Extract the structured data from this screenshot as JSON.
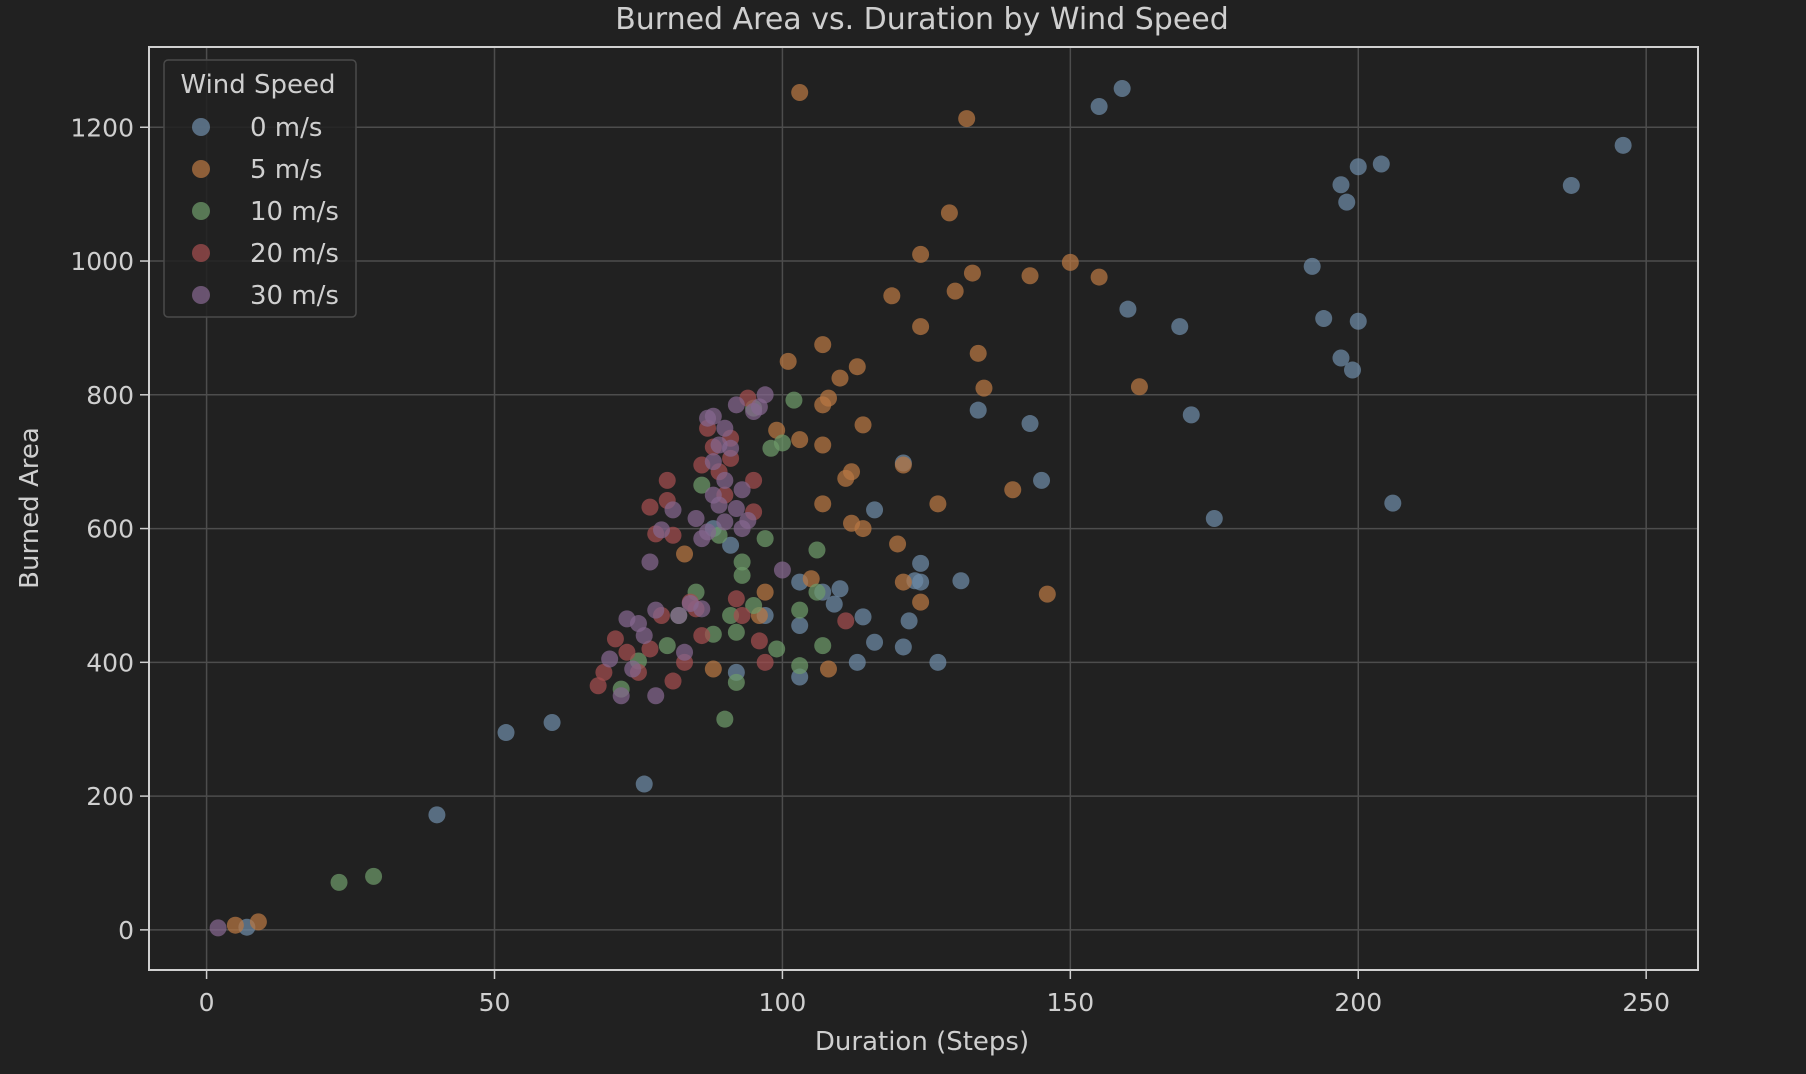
{
  "chart_data": {
    "type": "scatter",
    "title": "Burned Area vs. Duration by Wind Speed",
    "xlabel": "Duration (Steps)",
    "ylabel": "Burned Area",
    "xlim": [
      -10,
      259
    ],
    "ylim": [
      -60,
      1320
    ],
    "xticks": [
      0,
      50,
      100,
      150,
      200,
      250
    ],
    "yticks": [
      0,
      200,
      400,
      600,
      800,
      1000,
      1200
    ],
    "grid": true,
    "legend": {
      "title": "Wind Speed",
      "placement": "top-left"
    },
    "colors": {
      "background": "#212121",
      "grid": "#4d4d4d",
      "spine": "#d0d0d0",
      "text": "#cfcfcf"
    },
    "series": [
      {
        "name": "0 m/s",
        "color": "#6d8aa6",
        "points": [
          [
            7,
            4
          ],
          [
            40,
            172
          ],
          [
            52,
            295
          ],
          [
            60,
            310
          ],
          [
            76,
            218
          ],
          [
            88,
            600
          ],
          [
            91,
            575
          ],
          [
            92,
            385
          ],
          [
            97,
            470
          ],
          [
            103,
            520
          ],
          [
            103,
            455
          ],
          [
            103,
            378
          ],
          [
            107,
            505
          ],
          [
            109,
            487
          ],
          [
            110,
            510
          ],
          [
            113,
            400
          ],
          [
            114,
            468
          ],
          [
            116,
            430
          ],
          [
            116,
            628
          ],
          [
            121,
            698
          ],
          [
            121,
            423
          ],
          [
            122,
            462
          ],
          [
            123,
            522
          ],
          [
            124,
            520
          ],
          [
            124,
            548
          ],
          [
            127,
            400
          ],
          [
            131,
            522
          ],
          [
            134,
            777
          ],
          [
            143,
            757
          ],
          [
            145,
            672
          ],
          [
            155,
            1231
          ],
          [
            159,
            1258
          ],
          [
            160,
            928
          ],
          [
            169,
            902
          ],
          [
            171,
            770
          ],
          [
            175,
            615
          ],
          [
            192,
            992
          ],
          [
            194,
            914
          ],
          [
            197,
            1114
          ],
          [
            197,
            855
          ],
          [
            198,
            1088
          ],
          [
            199,
            837
          ],
          [
            200,
            1141
          ],
          [
            200,
            910
          ],
          [
            204,
            1145
          ],
          [
            206,
            638
          ],
          [
            237,
            1113
          ],
          [
            246,
            1173
          ]
        ]
      },
      {
        "name": "5 m/s",
        "color": "#b87742",
        "points": [
          [
            5,
            7
          ],
          [
            9,
            12
          ],
          [
            83,
            562
          ],
          [
            88,
            390
          ],
          [
            96,
            470
          ],
          [
            97,
            505
          ],
          [
            99,
            747
          ],
          [
            101,
            850
          ],
          [
            103,
            1252
          ],
          [
            103,
            733
          ],
          [
            105,
            525
          ],
          [
            107,
            725
          ],
          [
            107,
            875
          ],
          [
            107,
            637
          ],
          [
            107,
            785
          ],
          [
            108,
            390
          ],
          [
            108,
            795
          ],
          [
            110,
            825
          ],
          [
            111,
            675
          ],
          [
            112,
            685
          ],
          [
            112,
            608
          ],
          [
            113,
            842
          ],
          [
            114,
            600
          ],
          [
            114,
            755
          ],
          [
            120,
            577
          ],
          [
            121,
            520
          ],
          [
            121,
            695
          ],
          [
            119,
            948
          ],
          [
            124,
            1010
          ],
          [
            124,
            902
          ],
          [
            124,
            490
          ],
          [
            127,
            637
          ],
          [
            129,
            1072
          ],
          [
            130,
            955
          ],
          [
            132,
            1213
          ],
          [
            133,
            982
          ],
          [
            134,
            862
          ],
          [
            135,
            810
          ],
          [
            140,
            658
          ],
          [
            143,
            978
          ],
          [
            146,
            502
          ],
          [
            150,
            998
          ],
          [
            155,
            976
          ],
          [
            162,
            812
          ]
        ]
      },
      {
        "name": "10 m/s",
        "color": "#6d9a6a",
        "points": [
          [
            23,
            71
          ],
          [
            29,
            80
          ],
          [
            72,
            360
          ],
          [
            75,
            402
          ],
          [
            80,
            425
          ],
          [
            82,
            470
          ],
          [
            85,
            505
          ],
          [
            86,
            665
          ],
          [
            88,
            442
          ],
          [
            89,
            590
          ],
          [
            90,
            315
          ],
          [
            91,
            470
          ],
          [
            92,
            370
          ],
          [
            92,
            445
          ],
          [
            93,
            530
          ],
          [
            93,
            550
          ],
          [
            95,
            485
          ],
          [
            95,
            780
          ],
          [
            97,
            585
          ],
          [
            98,
            720
          ],
          [
            99,
            420
          ],
          [
            100,
            728
          ],
          [
            102,
            792
          ],
          [
            103,
            395
          ],
          [
            103,
            478
          ],
          [
            106,
            568
          ],
          [
            106,
            505
          ],
          [
            107,
            425
          ]
        ]
      },
      {
        "name": "20 m/s",
        "color": "#a34d4f",
        "points": [
          [
            68,
            365
          ],
          [
            69,
            385
          ],
          [
            71,
            435
          ],
          [
            73,
            415
          ],
          [
            75,
            385
          ],
          [
            77,
            420
          ],
          [
            77,
            632
          ],
          [
            78,
            592
          ],
          [
            79,
            470
          ],
          [
            80,
            672
          ],
          [
            80,
            642
          ],
          [
            81,
            590
          ],
          [
            81,
            372
          ],
          [
            83,
            400
          ],
          [
            84,
            490
          ],
          [
            85,
            480
          ],
          [
            86,
            440
          ],
          [
            86,
            695
          ],
          [
            87,
            750
          ],
          [
            88,
            722
          ],
          [
            89,
            685
          ],
          [
            90,
            650
          ],
          [
            91,
            705
          ],
          [
            91,
            735
          ],
          [
            92,
            495
          ],
          [
            93,
            470
          ],
          [
            94,
            795
          ],
          [
            95,
            625
          ],
          [
            95,
            672
          ],
          [
            96,
            432
          ],
          [
            97,
            400
          ],
          [
            111,
            462
          ]
        ]
      },
      {
        "name": "30 m/s",
        "color": "#85678f",
        "points": [
          [
            2,
            3
          ],
          [
            70,
            405
          ],
          [
            72,
            350
          ],
          [
            73,
            465
          ],
          [
            74,
            390
          ],
          [
            75,
            458
          ],
          [
            76,
            440
          ],
          [
            77,
            550
          ],
          [
            78,
            350
          ],
          [
            78,
            478
          ],
          [
            79,
            598
          ],
          [
            81,
            628
          ],
          [
            82,
            470
          ],
          [
            83,
            415
          ],
          [
            84,
            488
          ],
          [
            85,
            615
          ],
          [
            86,
            585
          ],
          [
            86,
            480
          ],
          [
            87,
            765
          ],
          [
            87,
            595
          ],
          [
            88,
            768
          ],
          [
            88,
            650
          ],
          [
            88,
            700
          ],
          [
            89,
            635
          ],
          [
            89,
            725
          ],
          [
            90,
            672
          ],
          [
            90,
            750
          ],
          [
            90,
            610
          ],
          [
            91,
            720
          ],
          [
            92,
            630
          ],
          [
            92,
            785
          ],
          [
            93,
            600
          ],
          [
            93,
            658
          ],
          [
            94,
            612
          ],
          [
            95,
            775
          ],
          [
            96,
            782
          ],
          [
            97,
            800
          ],
          [
            100,
            538
          ]
        ]
      }
    ]
  }
}
